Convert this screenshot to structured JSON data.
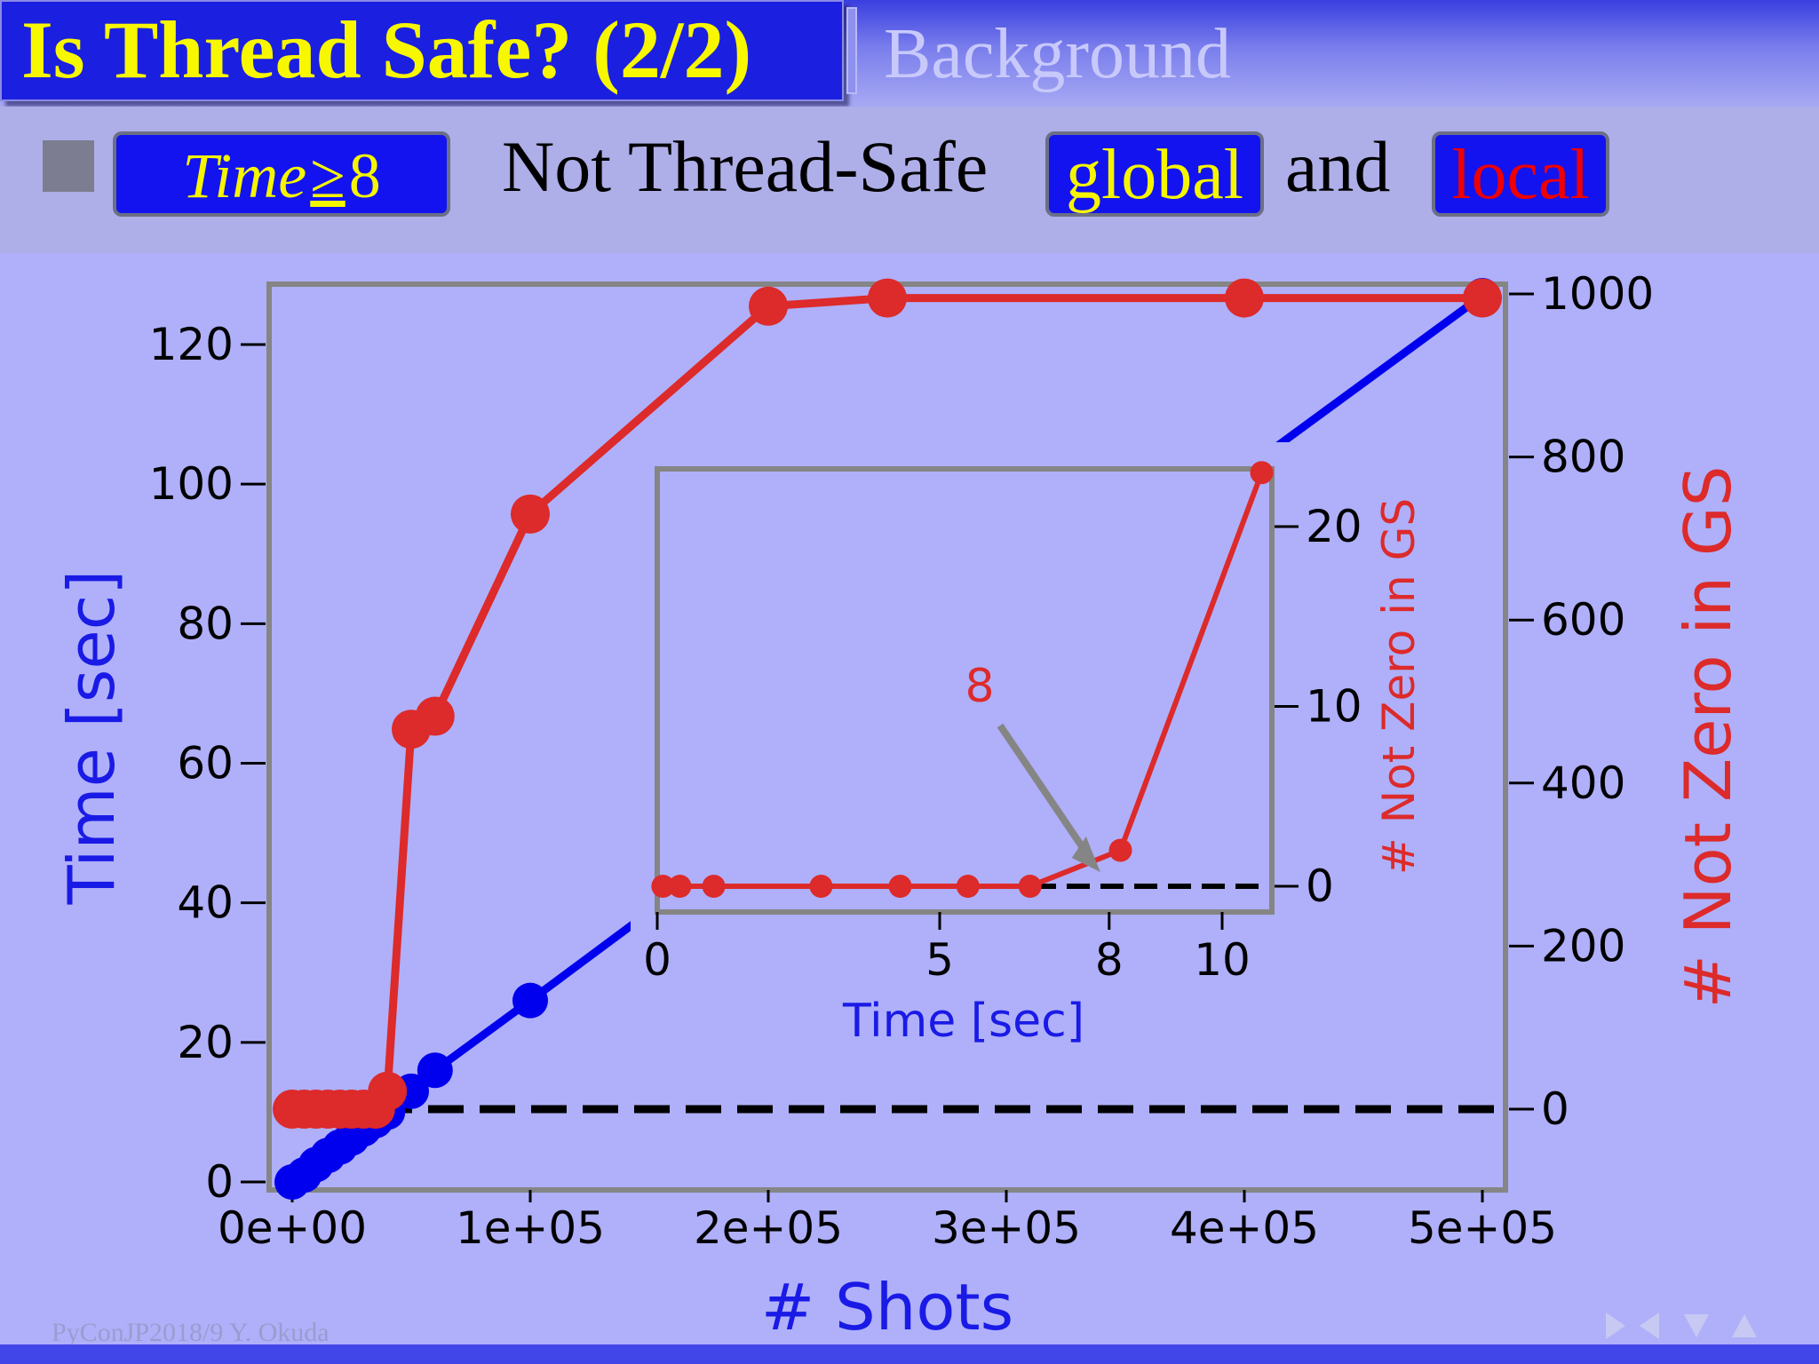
{
  "slide": {
    "title": "Is Thread Safe? (2/2)",
    "section": "Background",
    "bullet": {
      "time_var": "Time",
      "time_op": "≥",
      "time_value": "8",
      "text_mid": "Not Thread-Safe",
      "global_label": "global",
      "text_and": "and",
      "local_label": "local"
    },
    "footer": {
      "credit": "PyConJP2018/9     Y. Okuda"
    }
  },
  "colors": {
    "blue_series": "#0000ee",
    "red_series": "#dd2a2a",
    "background": "#afb0f9",
    "frame": "#858585"
  },
  "chart_data": [
    {
      "type": "line",
      "xlabel": "# Shots",
      "ylabel_left": "Time  [sec]",
      "ylabel_right": "# Not Zero in GS",
      "xlim": [
        -5000,
        510000
      ],
      "ylim_left": [
        -1,
        129
      ],
      "ylim_right": [
        -100,
        1000
      ],
      "x_ticks": [
        0,
        100000,
        200000,
        300000,
        400000,
        500000
      ],
      "x_tick_labels": [
        "0e+00",
        "1e+05",
        "2e+05",
        "3e+05",
        "4e+05",
        "5e+05"
      ],
      "y_left_ticks": [
        0,
        20,
        40,
        60,
        80,
        100,
        120
      ],
      "y_right_ticks": [
        0,
        200,
        400,
        600,
        800,
        1000
      ],
      "grid": false,
      "series": [
        {
          "axis": "left",
          "color": "#0000ee",
          "x": [
            0,
            5000,
            10000,
            15000,
            20000,
            25000,
            30000,
            35000,
            40000,
            50000,
            60000,
            100000,
            250000,
            400000,
            500000
          ],
          "y": [
            0,
            1,
            2.5,
            3.8,
            5,
            6.3,
            7.6,
            8.8,
            10,
            13,
            16,
            26,
            64,
            102,
            127
          ]
        },
        {
          "axis": "right",
          "color": "#dd2a2a",
          "x": [
            0,
            5000,
            10000,
            15000,
            20000,
            25000,
            30000,
            35000,
            40000,
            50000,
            60000,
            100000,
            200000,
            250000,
            400000,
            500000
          ],
          "y": [
            0,
            0,
            0,
            0,
            0,
            0,
            0,
            0,
            22,
            466,
            482,
            730,
            985,
            995,
            995,
            995
          ]
        }
      ],
      "reference_line": {
        "axis": "right",
        "y": 0,
        "style": "dashed"
      }
    },
    {
      "type": "line",
      "xlabel": "Time [sec]",
      "ylabel": "# Not Zero in GS",
      "xlim": [
        0,
        11
      ],
      "ylim": [
        -1,
        24
      ],
      "x_ticks": [
        0,
        5,
        8,
        10
      ],
      "y_ticks": [
        0,
        10,
        20
      ],
      "series": [
        {
          "color": "#dd2a2a",
          "x": [
            0.1,
            0.4,
            1.0,
            2.9,
            4.3,
            5.5,
            6.6,
            8.2,
            10.7
          ],
          "y": [
            0,
            0,
            0,
            0,
            0,
            0,
            0,
            2,
            23
          ]
        }
      ],
      "reference_line": {
        "y": 0,
        "style": "dashed"
      },
      "annotation": {
        "text": "8",
        "x": 8,
        "y": 0
      }
    }
  ]
}
